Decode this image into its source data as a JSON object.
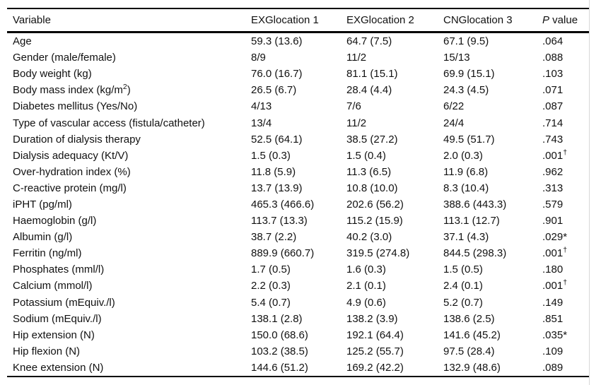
{
  "page": {
    "background": "#ffffff",
    "text_color": "#111111",
    "border_color": "#000000",
    "edge_divider_color": "#d8d8d8"
  },
  "table": {
    "columns": [
      {
        "label": "Variable"
      },
      {
        "label": "EXGlocation 1"
      },
      {
        "label": "EXGlocation 2"
      },
      {
        "label": "CNGlocation 3"
      },
      {
        "label": "P value",
        "italic_chars": 1
      }
    ],
    "rows": [
      {
        "variable": "Age",
        "values": [
          "59.3 (13.6)",
          "64.7 (7.5)",
          "67.1 (9.5)"
        ],
        "p": ".064"
      },
      {
        "variable": "Gender (male/female)",
        "values": [
          "8/9",
          "11/2",
          "15/13"
        ],
        "p": ".088"
      },
      {
        "variable": "Body weight (kg)",
        "values": [
          "76.0 (16.7)",
          "81.1 (15.1)",
          "69.9 (15.1)"
        ],
        "p": ".103"
      },
      {
        "variable": "Body mass index (kg/m",
        "variable_sup": "2",
        "variable_end": ")",
        "values": [
          "26.5 (6.7)",
          "28.4 (4.4)",
          "24.3 (4.5)"
        ],
        "p": ".071"
      },
      {
        "variable": "Diabetes mellitus (Yes/No)",
        "values": [
          "4/13",
          "7/6",
          "6/22"
        ],
        "p": ".087"
      },
      {
        "variable": "Type of vascular access (fistula/catheter)",
        "values": [
          "13/4",
          "11/2",
          "24/4"
        ],
        "p": ".714"
      },
      {
        "variable": "Duration of dialysis therapy",
        "values": [
          "52.5 (64.1)",
          "38.5 (27.2)",
          "49.5 (51.7)"
        ],
        "p": ".743"
      },
      {
        "variable": "Dialysis adequacy (Kt/V)",
        "values": [
          "1.5 (0.3)",
          "1.5 (0.4)",
          "2.0 (0.3)"
        ],
        "p": ".001",
        "p_sup": "†"
      },
      {
        "variable": "Over-hydration index (%)",
        "values": [
          "11.8 (5.9)",
          "11.3 (6.5)",
          "11.9 (6.8)"
        ],
        "p": ".962"
      },
      {
        "variable": "C-reactive protein (mg/l)",
        "values": [
          "13.7 (13.9)",
          "10.8 (10.0)",
          "8.3 (10.4)"
        ],
        "p": ".313"
      },
      {
        "variable": "iPHT (pg/ml)",
        "values": [
          "465.3 (466.6)",
          "202.6 (56.2)",
          "388.6 (443.3)"
        ],
        "p": ".579"
      },
      {
        "variable": "Haemoglobin (g/l)",
        "values": [
          "113.7 (13.3)",
          "115.2 (15.9)",
          "113.1 (12.7)"
        ],
        "p": ".901"
      },
      {
        "variable": "Albumin (g/l)",
        "values": [
          "38.7 (2.2)",
          "40.2 (3.0)",
          "37.1 (4.3)"
        ],
        "p": ".029*"
      },
      {
        "variable": "Ferritin (ng/ml)",
        "values": [
          "889.9 (660.7)",
          "319.5 (274.8)",
          "844.5 (298.3)"
        ],
        "p": ".001",
        "p_sup": "†"
      },
      {
        "variable": "Phosphates (mml/l)",
        "values": [
          "1.7 (0.5)",
          "1.6 (0.3)",
          "1.5 (0.5)"
        ],
        "p": ".180"
      },
      {
        "variable": "Calcium (mmol/l)",
        "values": [
          "2.2 (0.3)",
          "2.1 (0.1)",
          "2.4 (0.1)"
        ],
        "p": ".001",
        "p_sup": "†"
      },
      {
        "variable": "Potassium (mEquiv./l)",
        "values": [
          "5.4 (0.7)",
          "4.9 (0.6)",
          "5.2 (0.7)"
        ],
        "p": ".149"
      },
      {
        "variable": "Sodium (mEquiv./l)",
        "values": [
          "138.1 (2.8)",
          "138.2 (3.9)",
          "138.6 (2.5)"
        ],
        "p": ".851"
      },
      {
        "variable": "Hip extension (N)",
        "values": [
          "150.0 (68.6)",
          "192.1 (64.4)",
          "141.6 (45.2)"
        ],
        "p": ".035*"
      },
      {
        "variable": "Hip flexion (N)",
        "values": [
          "103.2 (38.5)",
          "125.2 (55.7)",
          "97.5 (28.4)"
        ],
        "p": ".109"
      },
      {
        "variable": "Knee extension (N)",
        "values": [
          "144.6 (51.2)",
          "169.2 (42.2)",
          "132.9 (48.6)"
        ],
        "p": ".089"
      }
    ]
  }
}
